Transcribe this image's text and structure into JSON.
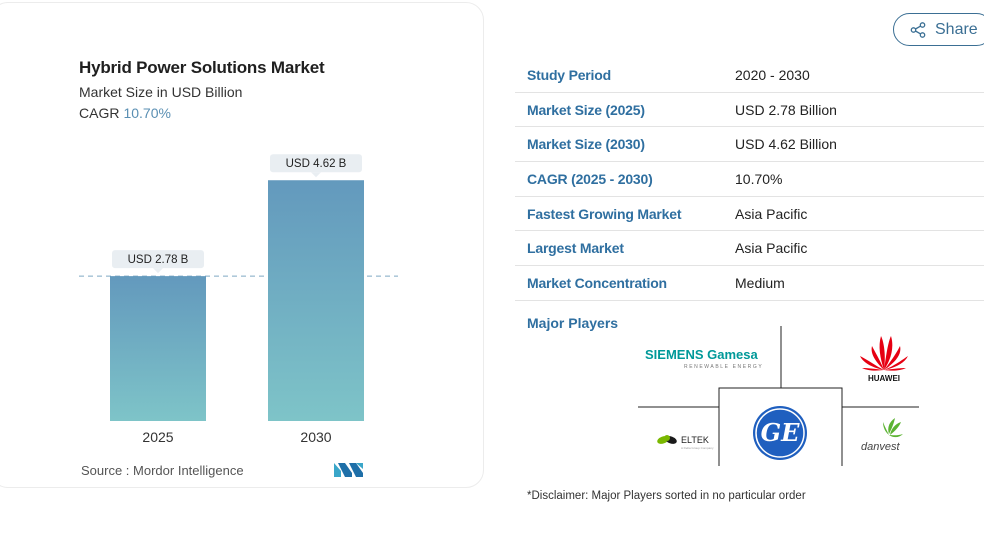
{
  "chart_data": {
    "type": "bar",
    "title": "Hybrid Power Solutions Market",
    "subtitle": "Market Size in USD Billion",
    "cagr_label": "CAGR",
    "cagr_value": "10.70%",
    "categories": [
      "2025",
      "2030"
    ],
    "values": [
      2.78,
      4.62
    ],
    "data_labels": [
      "USD 2.78 B",
      "USD 4.62 B"
    ],
    "ylim": [
      0,
      5.2
    ],
    "reference_line_value": 2.78,
    "bar_colors": [
      "#6399bd",
      "#7ec4c8"
    ]
  },
  "source": {
    "label": "Source :",
    "text": "Mordor Intelligence",
    "logo_icon": "mordor-intelligence-logo-icon"
  },
  "share": {
    "label": "Share",
    "icon": "share-icon"
  },
  "info_table": [
    {
      "label": "Study Period",
      "value": "2020 - 2030"
    },
    {
      "label": "Market Size (2025)",
      "value": "USD 2.78 Billion"
    },
    {
      "label": "Market Size (2030)",
      "value": "USD 4.62 Billion"
    },
    {
      "label": "CAGR (2025 - 2030)",
      "value": "10.70%"
    },
    {
      "label": "Fastest Growing Market",
      "value": "Asia Pacific"
    },
    {
      "label": "Largest Market",
      "value": "Asia Pacific"
    },
    {
      "label": "Market Concentration",
      "value": "Medium"
    }
  ],
  "major_players": {
    "title": "Major Players",
    "logos": [
      {
        "name": "SIEMENS Gamesa",
        "tagline": "RENEWABLE ENERGY"
      },
      {
        "name": "HUAWEI"
      },
      {
        "name": "ELTEK",
        "tagline": "A Delta Group Company"
      },
      {
        "name": "GE"
      },
      {
        "name": "danvest"
      }
    ]
  },
  "disclaimer": "*Disclaimer: Major Players sorted in no particular order",
  "colors": {
    "accent": "#2f6fa0",
    "bar_top": "#6399bd",
    "bar_bottom": "#7ec4c8",
    "huawei_red": "#e60012",
    "ge_blue": "#1f5fbf",
    "siemens_teal": "#009999"
  }
}
